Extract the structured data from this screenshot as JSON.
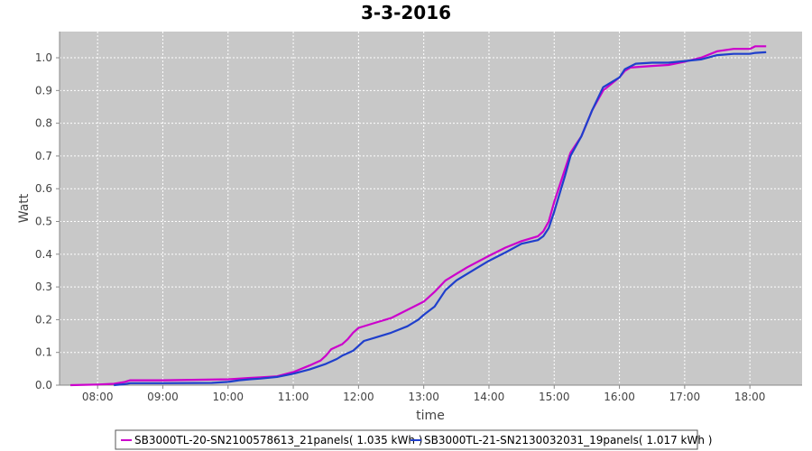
{
  "chart_data": {
    "type": "line",
    "title": "3-3-2016",
    "xlabel": "time",
    "ylabel": "Watt",
    "xlim": [
      "07:25",
      "18:48"
    ],
    "ylim": [
      0.0,
      1.08
    ],
    "x_ticks": [
      "08:00",
      "09:00",
      "10:00",
      "11:00",
      "12:00",
      "13:00",
      "14:00",
      "15:00",
      "16:00",
      "17:00",
      "18:00"
    ],
    "y_ticks": [
      "0.0",
      "0.1",
      "0.2",
      "0.3",
      "0.4",
      "0.5",
      "0.6",
      "0.7",
      "0.8",
      "0.9",
      "1.0"
    ],
    "grid": true,
    "legend_position": "bottom",
    "background": "#c8c8c8",
    "series": [
      {
        "name": "SB3000TL-20-SN2100578613_21panels( 1.035 kWh )",
        "color": "#cc00cc",
        "points": [
          [
            "07:35",
            0.0
          ],
          [
            "08:00",
            0.002
          ],
          [
            "08:15",
            0.004
          ],
          [
            "08:25",
            0.01
          ],
          [
            "08:30",
            0.015
          ],
          [
            "09:00",
            0.015
          ],
          [
            "10:00",
            0.018
          ],
          [
            "10:20",
            0.022
          ],
          [
            "10:30",
            0.024
          ],
          [
            "10:45",
            0.027
          ],
          [
            "11:00",
            0.04
          ],
          [
            "11:15",
            0.06
          ],
          [
            "11:25",
            0.075
          ],
          [
            "11:30",
            0.09
          ],
          [
            "11:35",
            0.11
          ],
          [
            "11:45",
            0.125
          ],
          [
            "11:50",
            0.14
          ],
          [
            "11:55",
            0.16
          ],
          [
            "12:00",
            0.175
          ],
          [
            "12:15",
            0.19
          ],
          [
            "12:30",
            0.205
          ],
          [
            "12:45",
            0.23
          ],
          [
            "13:00",
            0.255
          ],
          [
            "13:10",
            0.285
          ],
          [
            "13:20",
            0.32
          ],
          [
            "13:40",
            0.36
          ],
          [
            "14:00",
            0.395
          ],
          [
            "14:15",
            0.42
          ],
          [
            "14:30",
            0.44
          ],
          [
            "14:45",
            0.455
          ],
          [
            "14:50",
            0.47
          ],
          [
            "14:55",
            0.5
          ],
          [
            "15:00",
            0.56
          ],
          [
            "15:05",
            0.61
          ],
          [
            "15:10",
            0.66
          ],
          [
            "15:15",
            0.71
          ],
          [
            "15:25",
            0.76
          ],
          [
            "15:35",
            0.84
          ],
          [
            "15:45",
            0.9
          ],
          [
            "16:00",
            0.94
          ],
          [
            "16:05",
            0.96
          ],
          [
            "16:10",
            0.97
          ],
          [
            "16:30",
            0.975
          ],
          [
            "16:45",
            0.978
          ],
          [
            "17:00",
            0.988
          ],
          [
            "17:15",
            1.0
          ],
          [
            "17:30",
            1.02
          ],
          [
            "17:45",
            1.027
          ],
          [
            "18:00",
            1.027
          ],
          [
            "18:05",
            1.035
          ],
          [
            "18:15",
            1.035
          ]
        ]
      },
      {
        "name": "SB3000TL-21-SN2130032031_19panels( 1.017 kWh )",
        "color": "#1f3fcc",
        "points": [
          [
            "08:15",
            0.0
          ],
          [
            "08:25",
            0.003
          ],
          [
            "08:30",
            0.006
          ],
          [
            "09:00",
            0.006
          ],
          [
            "09:45",
            0.007
          ],
          [
            "10:00",
            0.01
          ],
          [
            "10:10",
            0.015
          ],
          [
            "10:20",
            0.018
          ],
          [
            "10:30",
            0.02
          ],
          [
            "10:45",
            0.025
          ],
          [
            "11:00",
            0.035
          ],
          [
            "11:15",
            0.048
          ],
          [
            "11:30",
            0.065
          ],
          [
            "11:40",
            0.08
          ],
          [
            "11:45",
            0.09
          ],
          [
            "11:55",
            0.105
          ],
          [
            "12:00",
            0.12
          ],
          [
            "12:05",
            0.135
          ],
          [
            "12:15",
            0.145
          ],
          [
            "12:30",
            0.16
          ],
          [
            "12:45",
            0.18
          ],
          [
            "12:55",
            0.2
          ],
          [
            "13:00",
            0.215
          ],
          [
            "13:10",
            0.24
          ],
          [
            "13:20",
            0.29
          ],
          [
            "13:30",
            0.32
          ],
          [
            "13:50",
            0.36
          ],
          [
            "14:00",
            0.38
          ],
          [
            "14:15",
            0.405
          ],
          [
            "14:30",
            0.432
          ],
          [
            "14:45",
            0.443
          ],
          [
            "14:50",
            0.455
          ],
          [
            "14:55",
            0.48
          ],
          [
            "15:00",
            0.53
          ],
          [
            "15:10",
            0.64
          ],
          [
            "15:15",
            0.7
          ],
          [
            "15:25",
            0.76
          ],
          [
            "15:35",
            0.84
          ],
          [
            "15:45",
            0.91
          ],
          [
            "16:00",
            0.94
          ],
          [
            "16:05",
            0.965
          ],
          [
            "16:15",
            0.982
          ],
          [
            "16:30",
            0.985
          ],
          [
            "16:45",
            0.985
          ],
          [
            "17:00",
            0.99
          ],
          [
            "17:15",
            0.995
          ],
          [
            "17:30",
            1.008
          ],
          [
            "17:45",
            1.012
          ],
          [
            "18:00",
            1.012
          ],
          [
            "18:05",
            1.015
          ],
          [
            "18:15",
            1.017
          ]
        ]
      }
    ]
  }
}
